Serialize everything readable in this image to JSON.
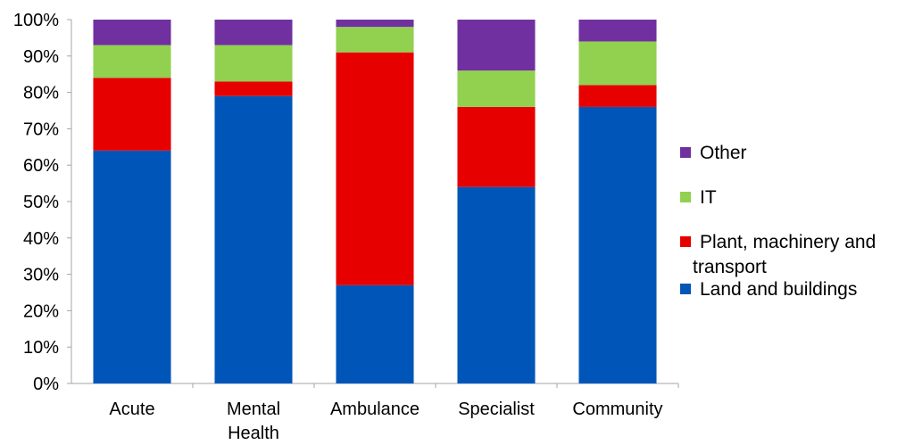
{
  "chart_data": {
    "type": "bar",
    "stacked": true,
    "normalized_percent": true,
    "categories": [
      [
        "Acute"
      ],
      [
        "Mental",
        "Health"
      ],
      [
        "Ambulance"
      ],
      [
        "Specialist"
      ],
      [
        "Community"
      ]
    ],
    "series": [
      {
        "name": "Land and buildings",
        "color": "#0056b8",
        "values": [
          64,
          79,
          27,
          54,
          76
        ]
      },
      {
        "name": "Plant, machinery and transport",
        "color": "#e60000",
        "values": [
          20,
          4,
          64,
          22,
          6
        ]
      },
      {
        "name": "IT",
        "color": "#92d050",
        "values": [
          9,
          10,
          7,
          10,
          12
        ]
      },
      {
        "name": "Other",
        "color": "#7030a0",
        "values": [
          7,
          7,
          2,
          14,
          6
        ]
      }
    ],
    "y_ticks": [
      "0%",
      "10%",
      "20%",
      "30%",
      "40%",
      "50%",
      "60%",
      "70%",
      "80%",
      "90%",
      "100%"
    ],
    "ylim": [
      0,
      100
    ],
    "legend": {
      "placement": "right",
      "order": [
        "Other",
        "IT",
        "Plant, machinery and transport",
        "Land and buildings"
      ],
      "labels": [
        [
          "Other"
        ],
        [
          "IT"
        ],
        [
          "Plant, machinery and",
          "transport"
        ],
        [
          "Land and buildings"
        ]
      ]
    },
    "title": "",
    "xlabel": "",
    "ylabel": "",
    "grid": false
  }
}
